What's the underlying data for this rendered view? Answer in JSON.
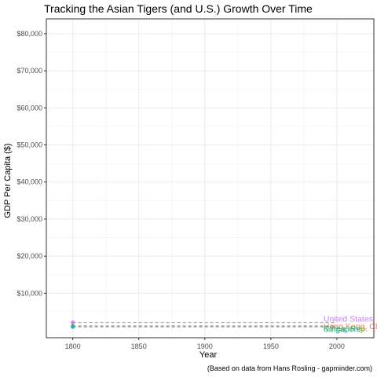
{
  "chart_data": {
    "type": "line",
    "title": "Tracking the Asian Tigers (and U.S.) Growth Over Time",
    "xlabel": "Year",
    "ylabel": "GDP Per Capita ($)",
    "caption": "(Based on data from Hans Rosling - gapminder.com)",
    "xlim": [
      1780,
      2028
    ],
    "ylim": [
      -2000,
      84000
    ],
    "x_ticks": [
      1800,
      1850,
      1900,
      1950,
      2000
    ],
    "y_ticks": [
      10000,
      20000,
      30000,
      40000,
      50000,
      60000,
      70000,
      80000
    ],
    "y_tick_labels": [
      "$10,000",
      "$20,000",
      "$30,000",
      "$40,000",
      "$50,000",
      "$60,000",
      "$70,000",
      "$80,000"
    ],
    "grid": true,
    "series": [
      {
        "name": "United States",
        "color": "#C77CFF",
        "x": [
          1800,
          2000
        ],
        "values": [
          2100,
          2100
        ]
      },
      {
        "name": "Hong Kong, China",
        "color": "#F8766D",
        "x": [
          1800,
          2000
        ],
        "values": [
          1200,
          1200
        ]
      },
      {
        "name": "Korea, Rep.",
        "color": "#7CAE00",
        "x": [
          1800,
          2000
        ],
        "values": [
          1000,
          1000
        ]
      },
      {
        "name": "Singapore",
        "color": "#00BFC4",
        "x": [
          1800,
          2000
        ],
        "values": [
          900,
          900
        ]
      }
    ],
    "end_labels": [
      {
        "text": "United States",
        "color": "#C77CFF"
      },
      {
        "text": "Hong Kong, China",
        "color": "#F8766D"
      },
      {
        "text": "Korea, Rep.",
        "color": "#7CAE00"
      },
      {
        "text": "Singapore",
        "color": "#00BFC4"
      }
    ]
  }
}
